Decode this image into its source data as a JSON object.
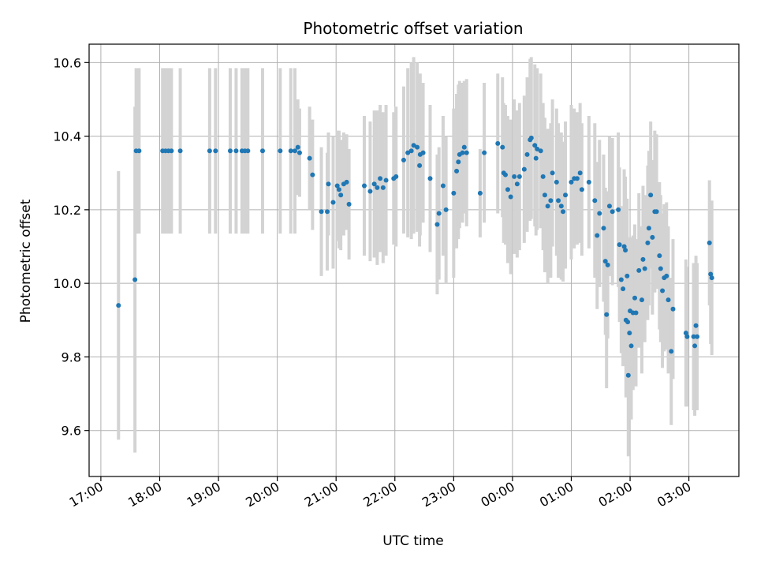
{
  "chart_data": {
    "type": "scatter",
    "title": "Photometric offset variation",
    "xlabel": "UTC time",
    "ylabel": "Photometric offset",
    "x_tick_labels": [
      "17:00",
      "18:00",
      "19:00",
      "20:00",
      "21:00",
      "22:00",
      "23:00",
      "00:00",
      "01:00",
      "02:00",
      "03:00"
    ],
    "y_tick_labels": [
      "9.6",
      "9.8",
      "10.0",
      "10.2",
      "10.4",
      "10.6"
    ],
    "x_ticks": [
      17,
      18,
      19,
      20,
      21,
      22,
      23,
      24,
      25,
      26,
      27
    ],
    "y_ticks": [
      9.6,
      9.8,
      10.0,
      10.2,
      10.4,
      10.6
    ],
    "xlim": [
      16.8,
      27.85
    ],
    "ylim": [
      9.475,
      10.65
    ],
    "grid": true,
    "colors": {
      "marker": "#1f77b4",
      "errorbar": "#d3d3d3",
      "grid": "#b0b0b0"
    },
    "points": [
      {
        "x": 17.3,
        "y": 9.94,
        "err": 0.365
      },
      {
        "x": 17.58,
        "y": 10.01,
        "err": 0.47
      },
      {
        "x": 17.6,
        "y": 10.36,
        "err": 0.225
      },
      {
        "x": 17.65,
        "y": 10.36,
        "err": 0.225
      },
      {
        "x": 18.05,
        "y": 10.36,
        "err": 0.225
      },
      {
        "x": 18.1,
        "y": 10.36,
        "err": 0.225
      },
      {
        "x": 18.15,
        "y": 10.36,
        "err": 0.225
      },
      {
        "x": 18.2,
        "y": 10.36,
        "err": 0.225
      },
      {
        "x": 18.35,
        "y": 10.36,
        "err": 0.225
      },
      {
        "x": 18.85,
        "y": 10.36,
        "err": 0.225
      },
      {
        "x": 18.95,
        "y": 10.36,
        "err": 0.225
      },
      {
        "x": 19.2,
        "y": 10.36,
        "err": 0.225
      },
      {
        "x": 19.3,
        "y": 10.36,
        "err": 0.225
      },
      {
        "x": 19.4,
        "y": 10.36,
        "err": 0.225
      },
      {
        "x": 19.45,
        "y": 10.36,
        "err": 0.225
      },
      {
        "x": 19.5,
        "y": 10.36,
        "err": 0.225
      },
      {
        "x": 19.75,
        "y": 10.36,
        "err": 0.225
      },
      {
        "x": 20.05,
        "y": 10.36,
        "err": 0.225
      },
      {
        "x": 20.23,
        "y": 10.36,
        "err": 0.225
      },
      {
        "x": 20.3,
        "y": 10.36,
        "err": 0.225
      },
      {
        "x": 20.35,
        "y": 10.37,
        "err": 0.13
      },
      {
        "x": 20.38,
        "y": 10.355,
        "err": 0.12
      },
      {
        "x": 20.55,
        "y": 10.34,
        "err": 0.14
      },
      {
        "x": 20.6,
        "y": 10.295,
        "err": 0.15
      },
      {
        "x": 20.75,
        "y": 10.195,
        "err": 0.175
      },
      {
        "x": 20.85,
        "y": 10.195,
        "err": 0.16
      },
      {
        "x": 20.87,
        "y": 10.27,
        "err": 0.14
      },
      {
        "x": 20.95,
        "y": 10.22,
        "err": 0.18
      },
      {
        "x": 21.02,
        "y": 10.265,
        "err": 0.15
      },
      {
        "x": 21.05,
        "y": 10.255,
        "err": 0.16
      },
      {
        "x": 21.08,
        "y": 10.24,
        "err": 0.15
      },
      {
        "x": 21.13,
        "y": 10.27,
        "err": 0.14
      },
      {
        "x": 21.18,
        "y": 10.275,
        "err": 0.13
      },
      {
        "x": 21.22,
        "y": 10.215,
        "err": 0.15
      },
      {
        "x": 21.48,
        "y": 10.265,
        "err": 0.19
      },
      {
        "x": 21.58,
        "y": 10.25,
        "err": 0.19
      },
      {
        "x": 21.65,
        "y": 10.27,
        "err": 0.2
      },
      {
        "x": 21.7,
        "y": 10.26,
        "err": 0.21
      },
      {
        "x": 21.75,
        "y": 10.285,
        "err": 0.2
      },
      {
        "x": 21.8,
        "y": 10.26,
        "err": 0.205
      },
      {
        "x": 21.85,
        "y": 10.28,
        "err": 0.205
      },
      {
        "x": 21.98,
        "y": 10.285,
        "err": 0.18
      },
      {
        "x": 22.02,
        "y": 10.29,
        "err": 0.19
      },
      {
        "x": 22.15,
        "y": 10.335,
        "err": 0.2
      },
      {
        "x": 22.22,
        "y": 10.355,
        "err": 0.23
      },
      {
        "x": 22.28,
        "y": 10.36,
        "err": 0.24
      },
      {
        "x": 22.32,
        "y": 10.375,
        "err": 0.24
      },
      {
        "x": 22.38,
        "y": 10.37,
        "err": 0.23
      },
      {
        "x": 22.43,
        "y": 10.35,
        "err": 0.22
      },
      {
        "x": 22.48,
        "y": 10.355,
        "err": 0.19
      },
      {
        "x": 22.42,
        "y": 10.32,
        "err": 0.22
      },
      {
        "x": 22.6,
        "y": 10.285,
        "err": 0.2
      },
      {
        "x": 22.72,
        "y": 10.16,
        "err": 0.19
      },
      {
        "x": 22.75,
        "y": 10.19,
        "err": 0.18
      },
      {
        "x": 22.82,
        "y": 10.265,
        "err": 0.19
      },
      {
        "x": 22.87,
        "y": 10.2,
        "err": 0.2
      },
      {
        "x": 23.0,
        "y": 10.245,
        "err": 0.23
      },
      {
        "x": 23.05,
        "y": 10.305,
        "err": 0.21
      },
      {
        "x": 23.08,
        "y": 10.33,
        "err": 0.21
      },
      {
        "x": 23.1,
        "y": 10.35,
        "err": 0.2
      },
      {
        "x": 23.15,
        "y": 10.355,
        "err": 0.19
      },
      {
        "x": 23.18,
        "y": 10.37,
        "err": 0.18
      },
      {
        "x": 23.22,
        "y": 10.355,
        "err": 0.2
      },
      {
        "x": 23.45,
        "y": 10.245,
        "err": 0.12
      },
      {
        "x": 23.52,
        "y": 10.355,
        "err": 0.19
      },
      {
        "x": 23.75,
        "y": 10.38,
        "err": 0.19
      },
      {
        "x": 23.83,
        "y": 10.37,
        "err": 0.19
      },
      {
        "x": 23.85,
        "y": 10.3,
        "err": 0.19
      },
      {
        "x": 23.88,
        "y": 10.295,
        "err": 0.19
      },
      {
        "x": 23.92,
        "y": 10.255,
        "err": 0.2
      },
      {
        "x": 23.97,
        "y": 10.235,
        "err": 0.21
      },
      {
        "x": 24.03,
        "y": 10.29,
        "err": 0.21
      },
      {
        "x": 24.08,
        "y": 10.27,
        "err": 0.2
      },
      {
        "x": 24.12,
        "y": 10.29,
        "err": 0.2
      },
      {
        "x": 24.2,
        "y": 10.31,
        "err": 0.2
      },
      {
        "x": 24.25,
        "y": 10.35,
        "err": 0.21
      },
      {
        "x": 24.3,
        "y": 10.39,
        "err": 0.22
      },
      {
        "x": 24.32,
        "y": 10.395,
        "err": 0.22
      },
      {
        "x": 24.38,
        "y": 10.375,
        "err": 0.22
      },
      {
        "x": 24.4,
        "y": 10.34,
        "err": 0.21
      },
      {
        "x": 24.42,
        "y": 10.365,
        "err": 0.22
      },
      {
        "x": 24.48,
        "y": 10.36,
        "err": 0.21
      },
      {
        "x": 24.52,
        "y": 10.29,
        "err": 0.2
      },
      {
        "x": 24.55,
        "y": 10.24,
        "err": 0.21
      },
      {
        "x": 24.6,
        "y": 10.21,
        "err": 0.21
      },
      {
        "x": 24.65,
        "y": 10.225,
        "err": 0.21
      },
      {
        "x": 24.68,
        "y": 10.3,
        "err": 0.2
      },
      {
        "x": 24.75,
        "y": 10.275,
        "err": 0.2
      },
      {
        "x": 24.78,
        "y": 10.225,
        "err": 0.21
      },
      {
        "x": 24.83,
        "y": 10.21,
        "err": 0.2
      },
      {
        "x": 24.86,
        "y": 10.195,
        "err": 0.19
      },
      {
        "x": 24.9,
        "y": 10.24,
        "err": 0.2
      },
      {
        "x": 25.0,
        "y": 10.275,
        "err": 0.21
      },
      {
        "x": 25.05,
        "y": 10.285,
        "err": 0.19
      },
      {
        "x": 25.1,
        "y": 10.285,
        "err": 0.18
      },
      {
        "x": 25.15,
        "y": 10.3,
        "err": 0.19
      },
      {
        "x": 25.18,
        "y": 10.255,
        "err": 0.18
      },
      {
        "x": 25.3,
        "y": 10.275,
        "err": 0.18
      },
      {
        "x": 25.4,
        "y": 10.225,
        "err": 0.21
      },
      {
        "x": 25.44,
        "y": 10.13,
        "err": 0.2
      },
      {
        "x": 25.48,
        "y": 10.19,
        "err": 0.2
      },
      {
        "x": 25.55,
        "y": 10.15,
        "err": 0.2
      },
      {
        "x": 25.58,
        "y": 10.06,
        "err": 0.2
      },
      {
        "x": 25.6,
        "y": 9.915,
        "err": 0.2
      },
      {
        "x": 25.62,
        "y": 10.05,
        "err": 0.2
      },
      {
        "x": 25.65,
        "y": 10.21,
        "err": 0.19
      },
      {
        "x": 25.7,
        "y": 10.195,
        "err": 0.2
      },
      {
        "x": 25.8,
        "y": 10.2,
        "err": 0.21
      },
      {
        "x": 25.82,
        "y": 10.105,
        "err": 0.21
      },
      {
        "x": 25.85,
        "y": 10.01,
        "err": 0.2
      },
      {
        "x": 25.88,
        "y": 9.985,
        "err": 0.21
      },
      {
        "x": 25.9,
        "y": 10.1,
        "err": 0.21
      },
      {
        "x": 25.92,
        "y": 10.09,
        "err": 0.2
      },
      {
        "x": 25.95,
        "y": 10.02,
        "err": 0.21
      },
      {
        "x": 25.93,
        "y": 9.9,
        "err": 0.21
      },
      {
        "x": 25.96,
        "y": 9.895,
        "err": 0.2
      },
      {
        "x": 25.97,
        "y": 9.75,
        "err": 0.22
      },
      {
        "x": 25.99,
        "y": 9.865,
        "err": 0.2
      },
      {
        "x": 26.0,
        "y": 9.925,
        "err": 0.2
      },
      {
        "x": 26.02,
        "y": 9.83,
        "err": 0.2
      },
      {
        "x": 26.05,
        "y": 9.92,
        "err": 0.21
      },
      {
        "x": 26.08,
        "y": 9.96,
        "err": 0.2
      },
      {
        "x": 26.1,
        "y": 9.92,
        "err": 0.2
      },
      {
        "x": 26.15,
        "y": 10.035,
        "err": 0.21
      },
      {
        "x": 26.2,
        "y": 9.955,
        "err": 0.2
      },
      {
        "x": 26.22,
        "y": 10.065,
        "err": 0.2
      },
      {
        "x": 26.25,
        "y": 10.04,
        "err": 0.2
      },
      {
        "x": 26.3,
        "y": 10.11,
        "err": 0.21
      },
      {
        "x": 26.32,
        "y": 10.15,
        "err": 0.21
      },
      {
        "x": 26.35,
        "y": 10.24,
        "err": 0.2
      },
      {
        "x": 26.38,
        "y": 10.125,
        "err": 0.21
      },
      {
        "x": 26.42,
        "y": 10.195,
        "err": 0.22
      },
      {
        "x": 26.45,
        "y": 10.195,
        "err": 0.21
      },
      {
        "x": 26.5,
        "y": 10.075,
        "err": 0.2
      },
      {
        "x": 26.52,
        "y": 10.04,
        "err": 0.2
      },
      {
        "x": 26.55,
        "y": 9.98,
        "err": 0.21
      },
      {
        "x": 26.58,
        "y": 10.015,
        "err": 0.2
      },
      {
        "x": 26.62,
        "y": 10.02,
        "err": 0.2
      },
      {
        "x": 26.65,
        "y": 9.955,
        "err": 0.2
      },
      {
        "x": 26.7,
        "y": 9.815,
        "err": 0.2
      },
      {
        "x": 26.73,
        "y": 9.93,
        "err": 0.19
      },
      {
        "x": 26.95,
        "y": 9.865,
        "err": 0.2
      },
      {
        "x": 26.97,
        "y": 9.855,
        "err": 0.19
      },
      {
        "x": 27.08,
        "y": 9.855,
        "err": 0.2
      },
      {
        "x": 27.1,
        "y": 9.83,
        "err": 0.19
      },
      {
        "x": 27.12,
        "y": 9.885,
        "err": 0.19
      },
      {
        "x": 27.14,
        "y": 9.855,
        "err": 0.2
      },
      {
        "x": 27.35,
        "y": 10.11,
        "err": 0.17
      },
      {
        "x": 27.37,
        "y": 10.025,
        "err": 0.19
      },
      {
        "x": 27.39,
        "y": 10.015,
        "err": 0.21
      }
    ]
  }
}
